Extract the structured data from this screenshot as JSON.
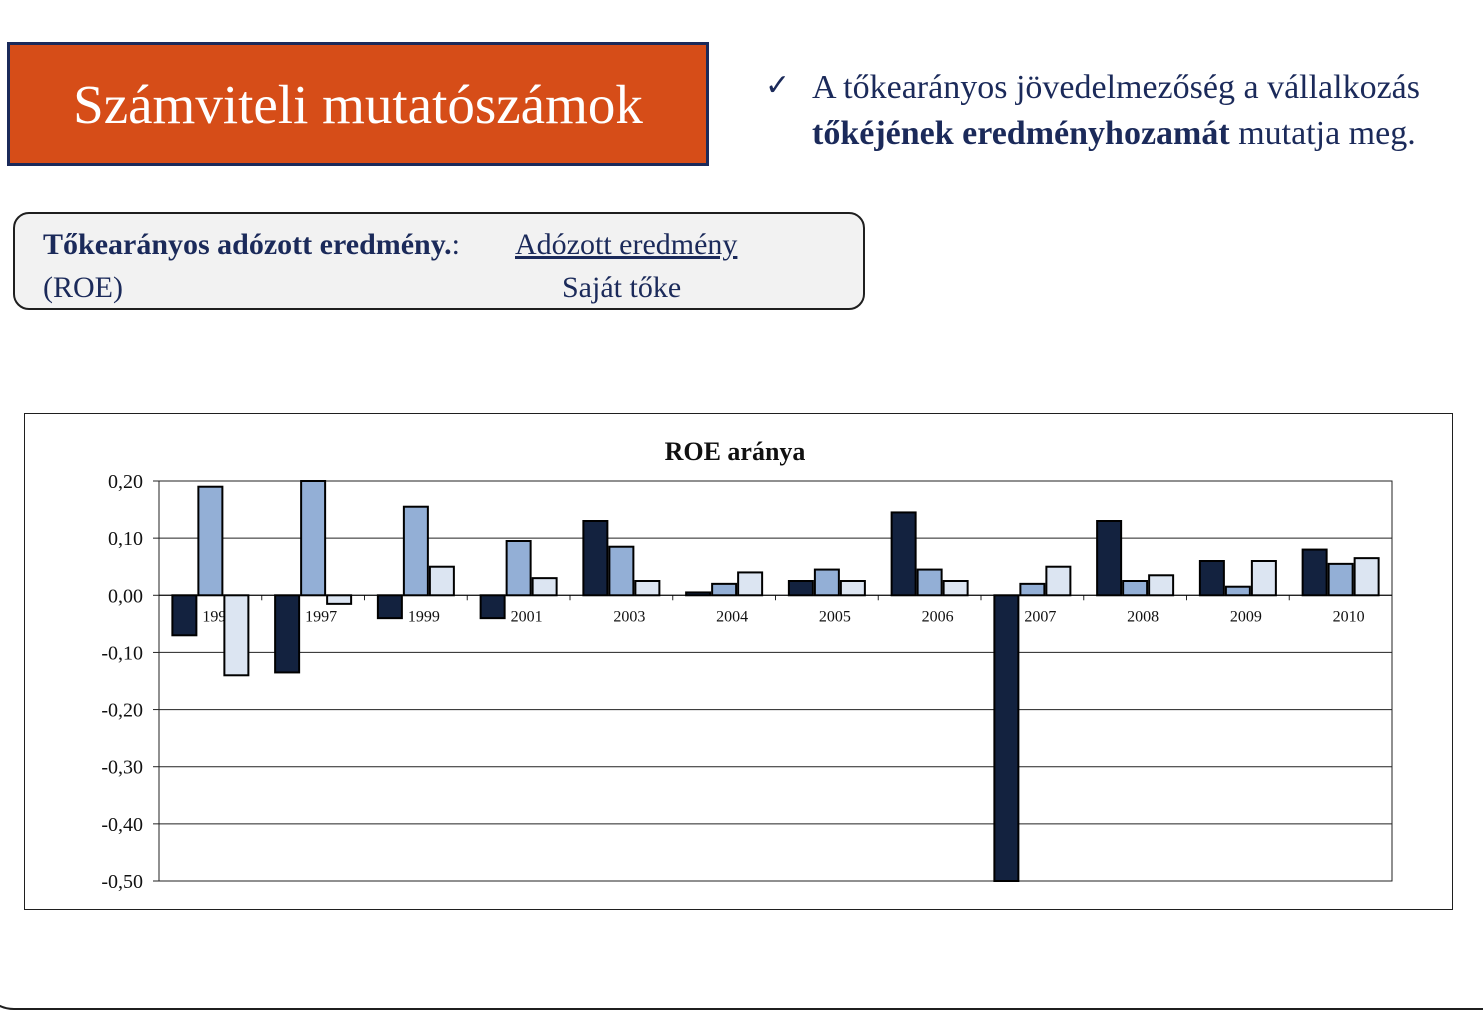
{
  "title": "Számviteli mutatószámok",
  "bullet": {
    "line1": "A tőkearányos jövedelmezőség a vállalkozás",
    "bold": "tőkéjének eredményhozamát",
    "rest": " mutatja meg."
  },
  "formula": {
    "label": "Tőkearányos adózott eredmény.",
    "colon": ": ",
    "numerator": "Adózott eredmény",
    "abbreviation": "(ROE)",
    "denominator": "Saját tőke"
  },
  "colors": {
    "title_bg": "#d64d18",
    "text_navy": "#1b2a5a",
    "series": [
      "#13223f",
      "#93afd6",
      "#dce5f2"
    ]
  },
  "chart_data": {
    "type": "bar",
    "title": "ROE aránya",
    "categories": [
      "1995",
      "1997",
      "1999",
      "2001",
      "2003",
      "2004",
      "2005",
      "2006",
      "2007",
      "2008",
      "2009",
      "2010"
    ],
    "series": [
      {
        "values": [
          -0.07,
          -0.135,
          -0.04,
          -0.04,
          0.13,
          0.005,
          0.025,
          0.145,
          -0.5,
          0.13,
          0.06,
          0.08
        ]
      },
      {
        "values": [
          0.19,
          0.2,
          0.155,
          0.095,
          0.085,
          0.02,
          0.045,
          0.045,
          0.02,
          0.025,
          0.015,
          0.055
        ]
      },
      {
        "values": [
          -0.14,
          -0.015,
          0.05,
          0.03,
          0.025,
          0.04,
          0.025,
          0.025,
          0.05,
          0.035,
          0.06,
          0.065
        ]
      }
    ],
    "ylim": [
      -0.5,
      0.2
    ],
    "yticks": [
      "0,20",
      "0,10",
      "0,00",
      "-0,10",
      "-0,20",
      "-0,30",
      "-0,40",
      "-0,50"
    ],
    "grid": true,
    "legend": "none"
  }
}
